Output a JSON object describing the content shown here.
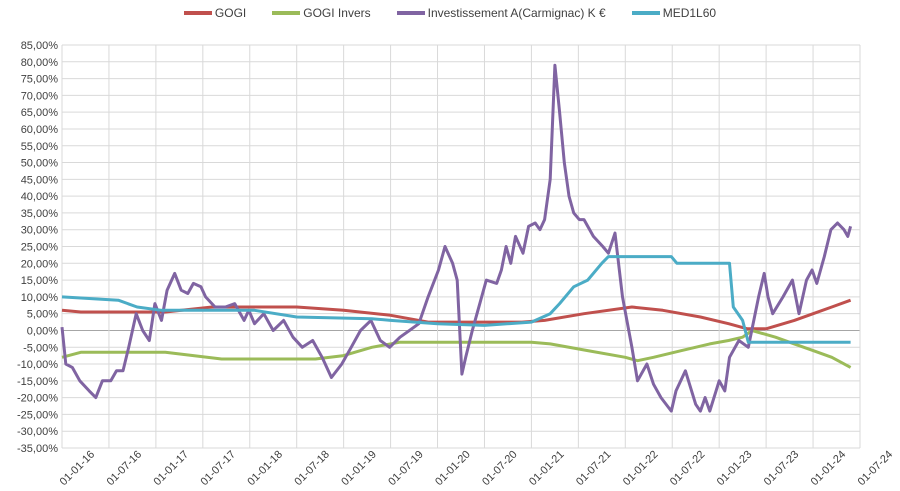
{
  "chart_data": {
    "type": "line",
    "title": "",
    "xlabel": "",
    "ylabel": "",
    "x_unit": "years since 01-01-16",
    "xlim": [
      0,
      8.5
    ],
    "ylim": [
      -35,
      85
    ],
    "y_step": 5,
    "grid": true,
    "legend_position": "top",
    "x_tick_labels": [
      "01-01-16",
      "01-07-16",
      "01-01-17",
      "01-07-17",
      "01-01-18",
      "01-07-18",
      "01-01-19",
      "01-07-19",
      "01-01-20",
      "01-07-20",
      "01-01-21",
      "01-07-21",
      "01-01-22",
      "01-07-22",
      "01-01-23",
      "01-07-23",
      "01-01-24",
      "01-07-24"
    ],
    "y_tick_labels": [
      "85,00%",
      "80,00%",
      "75,00%",
      "70,00%",
      "65,00%",
      "60,00%",
      "55,00%",
      "50,00%",
      "45,00%",
      "40,00%",
      "35,00%",
      "30,00%",
      "25,00%",
      "20,00%",
      "15,00%",
      "10,00%",
      "5,00%",
      "0,00%",
      "-5,00%",
      "-10,00%",
      "-15,00%",
      "-20,00%",
      "-25,00%",
      "-30,00%",
      "-35,00%"
    ],
    "series": [
      {
        "name": "GOGI",
        "color": "#c0504d",
        "points": [
          [
            0,
            6
          ],
          [
            0.2,
            5.5
          ],
          [
            1.1,
            5.5
          ],
          [
            1.6,
            7
          ],
          [
            2.5,
            7
          ],
          [
            3.0,
            6
          ],
          [
            3.5,
            4.5
          ],
          [
            3.9,
            2.5
          ],
          [
            4.9,
            2.5
          ],
          [
            5.14,
            3
          ],
          [
            5.56,
            5
          ],
          [
            6.07,
            7
          ],
          [
            6.4,
            6
          ],
          [
            6.8,
            4
          ],
          [
            7.1,
            2
          ],
          [
            7.3,
            0.5
          ],
          [
            7.5,
            0.5
          ],
          [
            7.8,
            3
          ],
          [
            8.0,
            5
          ],
          [
            8.2,
            7
          ],
          [
            8.4,
            9
          ]
        ]
      },
      {
        "name": "GOGI Invers",
        "color": "#9bbb59",
        "points": [
          [
            0,
            -8
          ],
          [
            0.2,
            -6.5
          ],
          [
            1.1,
            -6.5
          ],
          [
            1.4,
            -7.5
          ],
          [
            1.7,
            -8.5
          ],
          [
            2.7,
            -8.5
          ],
          [
            3.0,
            -7.5
          ],
          [
            3.3,
            -5
          ],
          [
            3.6,
            -3.5
          ],
          [
            5.0,
            -3.5
          ],
          [
            5.2,
            -4
          ],
          [
            5.6,
            -6
          ],
          [
            6.0,
            -8
          ],
          [
            6.13,
            -9
          ],
          [
            6.3,
            -8
          ],
          [
            6.6,
            -6
          ],
          [
            6.9,
            -4
          ],
          [
            7.1,
            -3
          ],
          [
            7.25,
            -2
          ],
          [
            7.35,
            0
          ],
          [
            7.6,
            -2
          ],
          [
            7.8,
            -4
          ],
          [
            8.0,
            -6
          ],
          [
            8.2,
            -8
          ],
          [
            8.4,
            -11
          ]
        ]
      },
      {
        "name": "Investissement A(Carmignac) K €",
        "color": "#8064a2",
        "points": [
          [
            0,
            1
          ],
          [
            0.04,
            -10
          ],
          [
            0.11,
            -11
          ],
          [
            0.19,
            -15
          ],
          [
            0.29,
            -18
          ],
          [
            0.36,
            -20
          ],
          [
            0.43,
            -15
          ],
          [
            0.52,
            -15
          ],
          [
            0.58,
            -12
          ],
          [
            0.65,
            -12
          ],
          [
            0.71,
            -5
          ],
          [
            0.79,
            5
          ],
          [
            0.86,
            0
          ],
          [
            0.93,
            -3
          ],
          [
            0.99,
            8
          ],
          [
            1.06,
            3
          ],
          [
            1.12,
            12
          ],
          [
            1.2,
            17
          ],
          [
            1.27,
            12
          ],
          [
            1.34,
            11
          ],
          [
            1.4,
            14
          ],
          [
            1.48,
            13
          ],
          [
            1.53,
            10
          ],
          [
            1.63,
            7
          ],
          [
            1.74,
            7
          ],
          [
            1.84,
            8
          ],
          [
            1.94,
            3
          ],
          [
            1.99,
            6
          ],
          [
            2.05,
            2
          ],
          [
            2.15,
            5
          ],
          [
            2.25,
            0
          ],
          [
            2.36,
            3
          ],
          [
            2.46,
            -2
          ],
          [
            2.56,
            -5
          ],
          [
            2.67,
            -3
          ],
          [
            2.77,
            -8
          ],
          [
            2.87,
            -14
          ],
          [
            2.98,
            -10
          ],
          [
            3.08,
            -5
          ],
          [
            3.18,
            0
          ],
          [
            3.29,
            3
          ],
          [
            3.39,
            -3
          ],
          [
            3.49,
            -5
          ],
          [
            3.6,
            -2
          ],
          [
            3.7,
            0
          ],
          [
            3.8,
            2
          ],
          [
            3.9,
            10
          ],
          [
            4.01,
            18
          ],
          [
            4.08,
            25
          ],
          [
            4.16,
            20
          ],
          [
            4.21,
            15
          ],
          [
            4.26,
            -13
          ],
          [
            4.3,
            -8
          ],
          [
            4.37,
            0
          ],
          [
            4.42,
            5
          ],
          [
            4.52,
            15
          ],
          [
            4.63,
            14
          ],
          [
            4.68,
            18
          ],
          [
            4.73,
            25
          ],
          [
            4.78,
            20
          ],
          [
            4.83,
            28
          ],
          [
            4.91,
            23
          ],
          [
            4.97,
            31
          ],
          [
            5.04,
            32
          ],
          [
            5.09,
            30
          ],
          [
            5.14,
            33
          ],
          [
            5.2,
            45
          ],
          [
            5.25,
            79
          ],
          [
            5.3,
            65
          ],
          [
            5.35,
            50
          ],
          [
            5.4,
            40
          ],
          [
            5.45,
            35
          ],
          [
            5.51,
            33
          ],
          [
            5.56,
            33
          ],
          [
            5.66,
            28
          ],
          [
            5.76,
            25
          ],
          [
            5.82,
            23
          ],
          [
            5.89,
            29
          ],
          [
            5.97,
            10
          ],
          [
            6.07,
            -5
          ],
          [
            6.13,
            -15
          ],
          [
            6.23,
            -10
          ],
          [
            6.3,
            -16
          ],
          [
            6.38,
            -20
          ],
          [
            6.49,
            -24
          ],
          [
            6.54,
            -18
          ],
          [
            6.64,
            -12
          ],
          [
            6.75,
            -22
          ],
          [
            6.8,
            -24
          ],
          [
            6.85,
            -20
          ],
          [
            6.9,
            -24
          ],
          [
            7.0,
            -15
          ],
          [
            7.06,
            -18
          ],
          [
            7.11,
            -8
          ],
          [
            7.21,
            -3
          ],
          [
            7.31,
            -5
          ],
          [
            7.42,
            10
          ],
          [
            7.48,
            17
          ],
          [
            7.52,
            10
          ],
          [
            7.57,
            5
          ],
          [
            7.68,
            10
          ],
          [
            7.78,
            15
          ],
          [
            7.85,
            5
          ],
          [
            7.93,
            15
          ],
          [
            7.99,
            18
          ],
          [
            8.04,
            14
          ],
          [
            8.12,
            22
          ],
          [
            8.19,
            30
          ],
          [
            8.26,
            32
          ],
          [
            8.33,
            30
          ],
          [
            8.37,
            28
          ],
          [
            8.4,
            31
          ]
        ]
      },
      {
        "name": "MED1L60",
        "color": "#4bacc6",
        "points": [
          [
            0,
            10
          ],
          [
            0.6,
            9
          ],
          [
            0.8,
            7
          ],
          [
            1.06,
            6
          ],
          [
            2.05,
            6
          ],
          [
            2.5,
            4
          ],
          [
            3.3,
            3.5
          ],
          [
            3.5,
            3
          ],
          [
            4.0,
            2
          ],
          [
            4.5,
            1.5
          ],
          [
            5.0,
            2.5
          ],
          [
            5.2,
            5
          ],
          [
            5.3,
            8
          ],
          [
            5.45,
            13
          ],
          [
            5.6,
            15
          ],
          [
            5.75,
            20
          ],
          [
            5.82,
            22
          ],
          [
            6.49,
            22
          ],
          [
            6.55,
            20
          ],
          [
            7.11,
            20
          ],
          [
            7.15,
            7
          ],
          [
            7.25,
            3
          ],
          [
            7.31,
            -3.5
          ],
          [
            8.4,
            -3.5
          ]
        ]
      }
    ]
  }
}
